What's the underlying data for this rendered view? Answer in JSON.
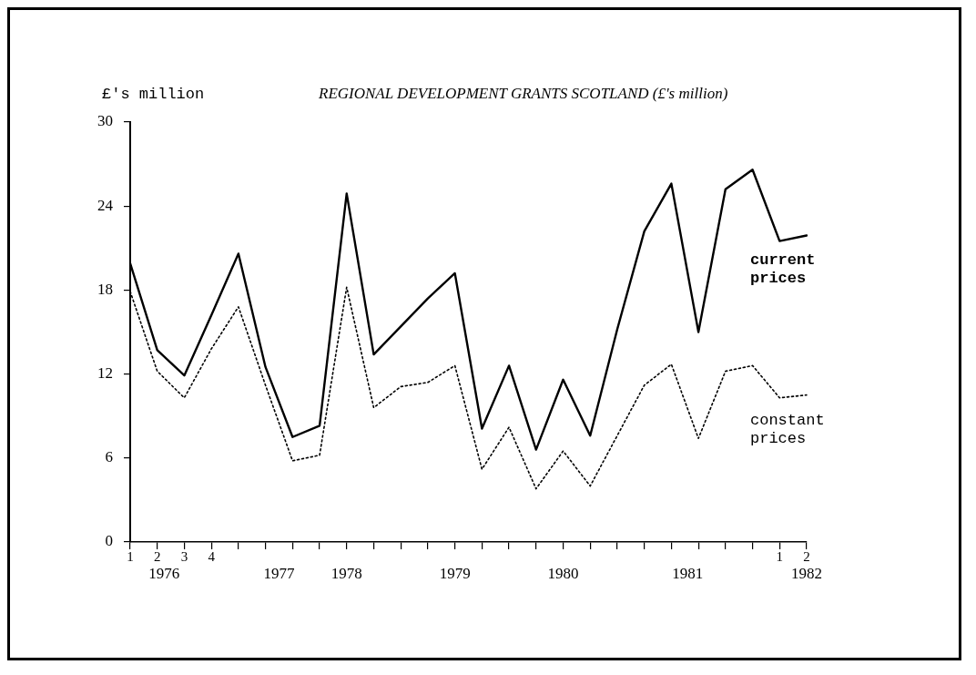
{
  "chart_data": {
    "type": "line",
    "title": "REGIONAL DEVELOPMENT GRANTS SCOTLAND (£'s million)",
    "ylabel": "£'s million",
    "categories": [
      "1",
      "2",
      "3",
      "4",
      null,
      null,
      null,
      null,
      null,
      null,
      null,
      null,
      null,
      null,
      null,
      null,
      null,
      null,
      null,
      null,
      null,
      null,
      null,
      null,
      "1",
      "2"
    ],
    "annotations": [
      "1976",
      "1977",
      "1978",
      "1979",
      "1980",
      "1981",
      "1982"
    ],
    "series": [
      {
        "name": "current prices",
        "color": "#000000",
        "line_style": "solid",
        "values": [
          19.9,
          13.7,
          11.9,
          16.2,
          20.6,
          12.5,
          7.5,
          8.3,
          24.9,
          13.4,
          15.4,
          17.4,
          19.2,
          8.1,
          12.6,
          6.6,
          11.6,
          7.6,
          15.2,
          22.2,
          25.6,
          15.0,
          25.2,
          26.6,
          21.5,
          21.9
        ]
      },
      {
        "name": "constant prices",
        "color": "#000000",
        "line_style": "dotted",
        "values": [
          17.9,
          12.2,
          10.3,
          13.8,
          16.8,
          11.2,
          5.8,
          6.2,
          18.2,
          9.6,
          11.1,
          11.4,
          12.6,
          5.2,
          8.2,
          3.8,
          6.5,
          4.0,
          7.6,
          11.2,
          12.7,
          7.4,
          12.2,
          12.6,
          10.3,
          10.5
        ]
      }
    ],
    "ylim": [
      0,
      30
    ],
    "yticks": [
      0,
      6,
      12,
      18,
      24,
      30
    ],
    "grid": false,
    "legend": false,
    "marker": "none"
  }
}
